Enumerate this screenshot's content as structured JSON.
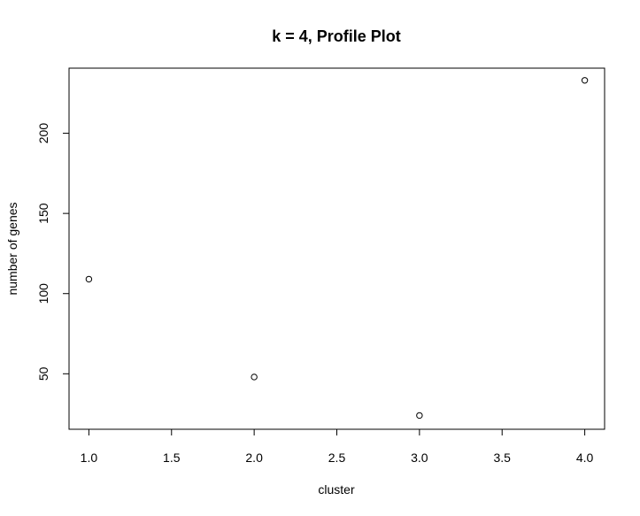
{
  "chart_data": {
    "type": "scatter",
    "title": "k = 4, Profile Plot",
    "xlabel": "cluster",
    "ylabel": "number of genes",
    "x": [
      1.0,
      2.0,
      3.0,
      4.0
    ],
    "y": [
      109,
      48,
      24,
      233
    ],
    "xticks": [
      "1.0",
      "1.5",
      "2.0",
      "2.5",
      "3.0",
      "3.5",
      "4.0"
    ],
    "xtick_values": [
      1.0,
      1.5,
      2.0,
      2.5,
      3.0,
      3.5,
      4.0
    ],
    "yticks": [
      "50",
      "100",
      "150",
      "200"
    ],
    "ytick_values": [
      50,
      100,
      150,
      200
    ],
    "xlim": [
      0.88,
      4.12
    ],
    "ylim": [
      15.4,
      240.6
    ],
    "grid": false,
    "marker": "open-circle"
  }
}
